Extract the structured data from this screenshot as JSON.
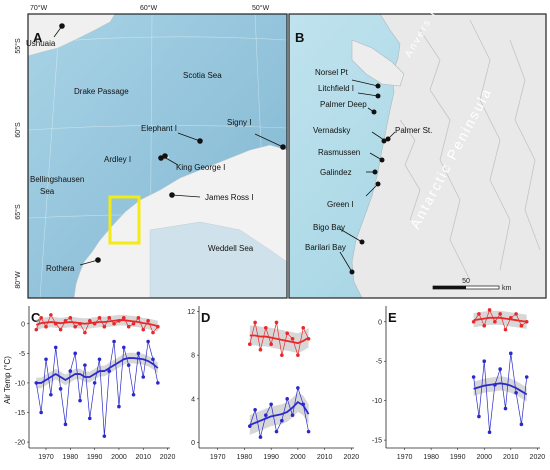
{
  "panel_a": {
    "letter": "A",
    "lon_ticks": [
      "70°W",
      "60°W",
      "50°W"
    ],
    "lat_ticks": [
      "55°S",
      "60°S",
      "65°S",
      "80°W"
    ],
    "places": [
      {
        "id": "ushuaia",
        "label": "Ushuaia"
      },
      {
        "id": "drake",
        "label": "Drake Passage"
      },
      {
        "id": "scotia",
        "label": "Scotia Sea"
      },
      {
        "id": "elephant",
        "label": "Elephant I"
      },
      {
        "id": "signy",
        "label": "Signy I"
      },
      {
        "id": "ardley",
        "label": "Ardley I"
      },
      {
        "id": "kinggeorge",
        "label": "King George I"
      },
      {
        "id": "bellings1",
        "label": "Bellingshausen"
      },
      {
        "id": "bellings2",
        "label": "Sea"
      },
      {
        "id": "jamesross",
        "label": "James Ross I"
      },
      {
        "id": "weddell",
        "label": "Weddell Sea"
      },
      {
        "id": "rothera",
        "label": "Rothera"
      }
    ]
  },
  "panel_b": {
    "letter": "B",
    "places": [
      {
        "id": "norsel",
        "label": "Norsel Pt"
      },
      {
        "id": "litchfield",
        "label": "Litchfield I"
      },
      {
        "id": "palmerdeep",
        "label": "Palmer Deep"
      },
      {
        "id": "vernadsky",
        "label": "Vernadsky"
      },
      {
        "id": "palmerst",
        "label": "Palmer St."
      },
      {
        "id": "rasmussen",
        "label": "Rasmussen"
      },
      {
        "id": "galindez",
        "label": "Galindez"
      },
      {
        "id": "green",
        "label": "Green I"
      },
      {
        "id": "bigo",
        "label": "Bigo Bay"
      },
      {
        "id": "barilari",
        "label": "Barilari Bay"
      }
    ],
    "region_labels": {
      "anvers": "Anvers I",
      "peninsula": "Antarctic Peninsula"
    },
    "scalebar": {
      "value": "50",
      "unit": "km"
    }
  },
  "charts_common": {
    "ylabel": "Air Temp (°C)",
    "colors": {
      "warm": "#e8282b",
      "cold": "#2a2acc",
      "band": "#bdbdbd"
    }
  },
  "chart_data": [
    {
      "panel": "C",
      "type": "line",
      "x_ticks": [
        "1970",
        "1980",
        "1990",
        "2000",
        "2010",
        "2020"
      ],
      "xlim": [
        1963,
        2021
      ],
      "y_ticks": [
        "0",
        "-5",
        "-10",
        "-15",
        "-20"
      ],
      "y_tick_values": [
        0,
        -5,
        -10,
        -15,
        -20
      ],
      "ylim": [
        -21,
        3
      ],
      "series": [
        {
          "color": "warm",
          "x": [
            1966,
            1968,
            1970,
            1972,
            1974,
            1976,
            1978,
            1980,
            1982,
            1984,
            1986,
            1988,
            1990,
            1992,
            1994,
            1996,
            1998,
            2000,
            2002,
            2004,
            2006,
            2008,
            2010,
            2012,
            2014,
            2016
          ],
          "values": [
            -1,
            1,
            -0.5,
            1.5,
            0,
            -1,
            0.5,
            1,
            -0.5,
            0,
            -1.5,
            0.5,
            0,
            1,
            -0.5,
            1,
            0,
            0.5,
            1,
            -0.5,
            0,
            1,
            -1,
            0.5,
            -1.5,
            -0.5
          ],
          "smooth": [
            -0.2,
            0.1,
            0.2,
            0.3,
            0.2,
            0.1,
            0.2,
            0.3,
            0.2,
            0.1,
            0,
            0.1,
            0.2,
            0.3,
            0.3,
            0.4,
            0.5,
            0.6,
            0.6,
            0.5,
            0.4,
            0.3,
            0.1,
            0,
            -0.2,
            -0.4
          ]
        },
        {
          "color": "cold",
          "x": [
            1966,
            1968,
            1970,
            1972,
            1974,
            1976,
            1978,
            1980,
            1982,
            1984,
            1986,
            1988,
            1990,
            1992,
            1994,
            1996,
            1998,
            2000,
            2002,
            2004,
            2006,
            2008,
            2010,
            2012,
            2014,
            2016
          ],
          "values": [
            -10,
            -15,
            -6,
            -12,
            -4,
            -11,
            -17,
            -8,
            -5,
            -13,
            -7,
            -16,
            -10,
            -6,
            -19,
            -8,
            -3,
            -14,
            -4,
            -7,
            -12,
            -5,
            -9,
            -3,
            -6,
            -10
          ],
          "smooth": [
            -10,
            -10,
            -9.5,
            -9,
            -8.5,
            -9,
            -9.5,
            -9,
            -8.5,
            -8.5,
            -9,
            -9,
            -8.5,
            -8,
            -8,
            -7.5,
            -7,
            -6.5,
            -6,
            -5.8,
            -5.8,
            -5.9,
            -6,
            -6.3,
            -6.8,
            -7.5
          ]
        }
      ]
    },
    {
      "panel": "D",
      "type": "line",
      "x_ticks": [
        "1970",
        "1980",
        "1990",
        "2000",
        "2010",
        "2020"
      ],
      "xlim": [
        1963,
        2021
      ],
      "y_ticks": [
        "12",
        "8",
        "4",
        "0"
      ],
      "y_tick_values": [
        12,
        8,
        4,
        0
      ],
      "ylim": [
        -0.5,
        12.5
      ],
      "series": [
        {
          "color": "warm",
          "x": [
            1982,
            1984,
            1986,
            1988,
            1990,
            1992,
            1994,
            1996,
            1998,
            2000,
            2002,
            2004
          ],
          "values": [
            9,
            11,
            8.5,
            10.5,
            9,
            11,
            8,
            10,
            9.5,
            8,
            10.5,
            9.5
          ],
          "smooth": [
            9.8,
            9.8,
            9.7,
            9.7,
            9.6,
            9.5,
            9.4,
            9.3,
            9.2,
            9.1,
            9.3,
            9.6
          ]
        },
        {
          "color": "cold",
          "x": [
            1982,
            1984,
            1986,
            1988,
            1990,
            1992,
            1994,
            1996,
            1998,
            2000,
            2002,
            2004
          ],
          "values": [
            1.5,
            3,
            0.5,
            2.5,
            3.5,
            1,
            2,
            4,
            2.5,
            5,
            3.5,
            1
          ],
          "smooth": [
            1.6,
            1.8,
            2,
            2.2,
            2.4,
            2.5,
            2.6,
            2.8,
            3.2,
            3.7,
            3.4,
            2.6
          ]
        }
      ]
    },
    {
      "panel": "E",
      "type": "line",
      "x_ticks": [
        "1970",
        "1980",
        "1990",
        "2000",
        "2010",
        "2020"
      ],
      "xlim": [
        1963,
        2021
      ],
      "y_ticks": [
        "0",
        "-5",
        "-10",
        "-15"
      ],
      "y_tick_values": [
        0,
        -5,
        -10,
        -15
      ],
      "ylim": [
        -16,
        2
      ],
      "series": [
        {
          "color": "warm",
          "x": [
            1996,
            1998,
            2000,
            2002,
            2004,
            2006,
            2008,
            2010,
            2012,
            2014,
            2016
          ],
          "values": [
            0,
            1,
            -0.5,
            1.5,
            0,
            1,
            -1,
            0.5,
            1,
            -0.5,
            0
          ],
          "smooth": [
            0.2,
            0.3,
            0.4,
            0.5,
            0.5,
            0.5,
            0.4,
            0.3,
            0.2,
            0.1,
            0
          ]
        },
        {
          "color": "cold",
          "x": [
            1996,
            1998,
            2000,
            2002,
            2004,
            2006,
            2008,
            2010,
            2012,
            2014,
            2016
          ],
          "values": [
            -7,
            -12,
            -5,
            -14,
            -8,
            -6,
            -11,
            -4,
            -9,
            -13,
            -7
          ],
          "smooth": [
            -8.5,
            -8.3,
            -8.1,
            -8,
            -7.9,
            -7.8,
            -7.9,
            -8.1,
            -8.4,
            -8.8,
            -9.2
          ]
        }
      ]
    }
  ]
}
